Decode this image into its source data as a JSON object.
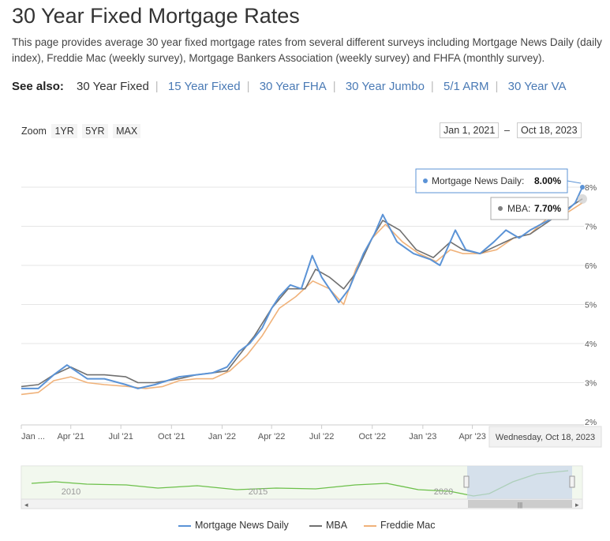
{
  "page": {
    "title": "30 Year Fixed Mortgage Rates",
    "description": "This page provides average 30 year fixed mortgage rates from several different surveys including Mortgage News Daily (daily index), Freddie Mac (weekly survey), Mortgage Bankers Association (weekly survey) and FHFA (monthly survey).",
    "see_also_label": "See also:",
    "see_also": [
      "30 Year Fixed",
      "15 Year Fixed",
      "30 Year FHA",
      "30 Year Jumbo",
      "5/1 ARM",
      "30 Year VA"
    ]
  },
  "controls": {
    "zoom_label": "Zoom",
    "zoom_buttons": [
      "1YR",
      "5YR",
      "MAX"
    ],
    "range_from": "Jan 1, 2021",
    "range_sep": "–",
    "range_to": "Oct 18, 2023"
  },
  "tooltip": {
    "mnd_label": "Mortgage News Daily:",
    "mnd_value": "8.00%",
    "mba_label": "MBA:",
    "mba_value": "7.70%",
    "date": "Wednesday, Oct 18, 2023"
  },
  "colors": {
    "mnd": "#5b93d6",
    "mba": "#707070",
    "freddie": "#f0b27a",
    "navigator": "#6cc04a"
  },
  "chart_data": {
    "type": "line",
    "x_ticks": [
      "Jan ...",
      "Apr '21",
      "Jul '21",
      "Oct '21",
      "Jan '22",
      "Apr '22",
      "Jul '22",
      "Oct '22",
      "Jan '23",
      "Apr '23"
    ],
    "y_ticks": [
      "2%",
      "3%",
      "4%",
      "5%",
      "6%",
      "7%",
      "8%"
    ],
    "ylim": [
      2,
      8.1
    ],
    "xlim": [
      "2021-01-01",
      "2023-10-18"
    ],
    "series": [
      {
        "name": "Mortgage News Daily",
        "x": [
          "2021-01-01",
          "2021-02-01",
          "2021-03-01",
          "2021-03-25",
          "2021-05-01",
          "2021-06-01",
          "2021-07-10",
          "2021-08-01",
          "2021-09-01",
          "2021-10-15",
          "2021-11-15",
          "2021-12-15",
          "2022-01-10",
          "2022-02-01",
          "2022-02-20",
          "2022-03-15",
          "2022-04-01",
          "2022-04-15",
          "2022-05-05",
          "2022-05-25",
          "2022-06-14",
          "2022-07-01",
          "2022-08-01",
          "2022-08-20",
          "2022-09-15",
          "2022-10-05",
          "2022-10-20",
          "2022-11-15",
          "2022-12-15",
          "2023-01-15",
          "2023-02-01",
          "2023-03-01",
          "2023-03-20",
          "2023-04-15",
          "2023-05-10",
          "2023-06-01",
          "2023-06-25",
          "2023-07-15",
          "2023-08-10",
          "2023-08-25",
          "2023-09-20",
          "2023-10-05",
          "2023-10-18"
        ],
        "values": [
          2.85,
          2.85,
          3.2,
          3.45,
          3.1,
          3.1,
          2.95,
          2.85,
          2.95,
          3.15,
          3.2,
          3.25,
          3.4,
          3.8,
          4.0,
          4.4,
          4.9,
          5.2,
          5.5,
          5.4,
          6.25,
          5.7,
          5.05,
          5.4,
          6.3,
          6.8,
          7.3,
          6.6,
          6.3,
          6.15,
          6.0,
          6.9,
          6.4,
          6.3,
          6.6,
          6.9,
          6.7,
          6.9,
          7.1,
          7.2,
          7.4,
          7.6,
          8.0
        ]
      },
      {
        "name": "MBA",
        "x": [
          "2021-01-01",
          "2021-02-01",
          "2021-03-01",
          "2021-04-01",
          "2021-05-01",
          "2021-06-01",
          "2021-07-10",
          "2021-08-01",
          "2021-09-01",
          "2021-10-15",
          "2021-11-15",
          "2021-12-15",
          "2022-01-10",
          "2022-02-01",
          "2022-03-01",
          "2022-04-01",
          "2022-05-01",
          "2022-06-01",
          "2022-06-20",
          "2022-07-15",
          "2022-08-10",
          "2022-09-01",
          "2022-10-01",
          "2022-10-20",
          "2022-11-20",
          "2022-12-20",
          "2023-01-20",
          "2023-02-20",
          "2023-03-15",
          "2023-04-15",
          "2023-05-15",
          "2023-06-15",
          "2023-07-15",
          "2023-08-15",
          "2023-09-15",
          "2023-10-18"
        ],
        "values": [
          2.9,
          2.95,
          3.2,
          3.4,
          3.2,
          3.2,
          3.15,
          3.0,
          3.0,
          3.1,
          3.2,
          3.25,
          3.3,
          3.7,
          4.2,
          4.9,
          5.4,
          5.4,
          5.9,
          5.7,
          5.4,
          5.8,
          6.7,
          7.15,
          6.9,
          6.4,
          6.2,
          6.6,
          6.4,
          6.3,
          6.5,
          6.7,
          6.8,
          7.1,
          7.4,
          7.7
        ]
      },
      {
        "name": "Freddie Mac",
        "x": [
          "2021-01-01",
          "2021-02-01",
          "2021-03-01",
          "2021-04-01",
          "2021-05-01",
          "2021-06-01",
          "2021-07-15",
          "2021-08-15",
          "2021-09-15",
          "2021-10-15",
          "2021-11-15",
          "2021-12-15",
          "2022-01-15",
          "2022-02-15",
          "2022-03-15",
          "2022-04-15",
          "2022-05-15",
          "2022-06-15",
          "2022-07-15",
          "2022-08-10",
          "2022-09-01",
          "2022-10-01",
          "2022-10-25",
          "2022-11-25",
          "2022-12-25",
          "2023-01-25",
          "2023-02-20",
          "2023-03-15",
          "2023-04-15",
          "2023-05-15",
          "2023-06-15",
          "2023-07-15",
          "2023-08-15",
          "2023-09-15",
          "2023-10-18"
        ],
        "values": [
          2.7,
          2.75,
          3.05,
          3.15,
          3.0,
          2.95,
          2.9,
          2.85,
          2.9,
          3.05,
          3.1,
          3.1,
          3.3,
          3.7,
          4.2,
          4.9,
          5.2,
          5.6,
          5.4,
          5.0,
          5.9,
          6.7,
          7.05,
          6.6,
          6.3,
          6.1,
          6.4,
          6.3,
          6.3,
          6.4,
          6.7,
          6.8,
          7.2,
          7.3,
          7.6
        ]
      }
    ],
    "navigator_ticks": [
      "2010",
      "2015",
      "2020"
    ],
    "legend_position": "bottom"
  }
}
